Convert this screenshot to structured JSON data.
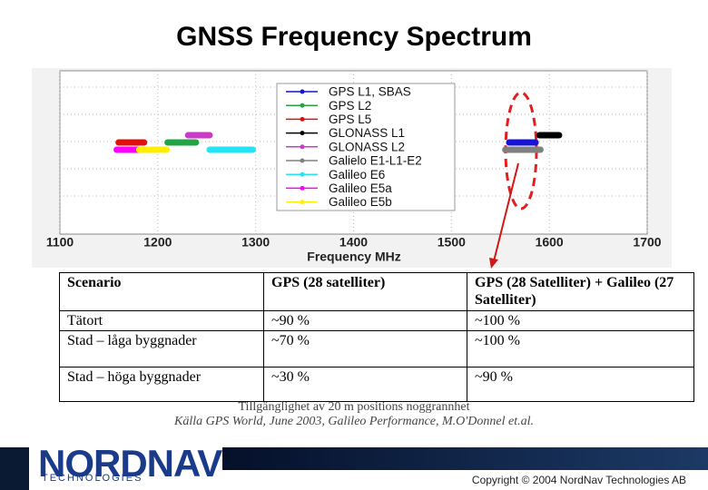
{
  "title": "GNSS Frequency Spectrum",
  "chart_data": {
    "type": "range",
    "xlabel": "Frequency MHz",
    "xlim": [
      1100,
      1700
    ],
    "xticks": [
      1100,
      1200,
      1300,
      1400,
      1500,
      1600,
      1700
    ],
    "grid": true,
    "series": [
      {
        "name": "GPS L1, SBAS",
        "color": "#1414d2",
        "values": [
          1559,
          1586
        ]
      },
      {
        "name": "GPS L2",
        "color": "#22a444",
        "values": [
          1210,
          1239
        ]
      },
      {
        "name": "GPS L5",
        "color": "#e01010",
        "values": [
          1160,
          1186
        ]
      },
      {
        "name": "GLONASS L1",
        "color": "#000000",
        "values": [
          1590,
          1610
        ]
      },
      {
        "name": "GLONASS L2",
        "color": "#c83cc8",
        "values": [
          1231,
          1253
        ]
      },
      {
        "name": "Galielo E1-L1-E2",
        "color": "#808080",
        "values": [
          1555,
          1591
        ]
      },
      {
        "name": "Galileo E6",
        "color": "#22e4f4",
        "values": [
          1253,
          1297
        ]
      },
      {
        "name": "Galileo E5a",
        "color": "#ff00ff",
        "values": [
          1158,
          1181
        ]
      },
      {
        "name": "Galileo E5b",
        "color": "#ffee00",
        "values": [
          1181,
          1209
        ]
      }
    ]
  },
  "table": {
    "header": [
      "Scenario",
      "GPS (28 satelliter)",
      "GPS (28 Satelliter) + Galileo (27 Satelliter)"
    ],
    "rows": [
      [
        "Tätort",
        "~90 %",
        "~100 %"
      ],
      [
        "Stad – låga byggnader",
        "~70 %",
        "~100 %"
      ],
      [
        "Stad – höga byggnader",
        "~30 %",
        "~90 %"
      ]
    ]
  },
  "caption": "Tillgänglighet av 20 m positions noggrannhet",
  "source": "Källa GPS World, June 2003, Galileo Performance, M.O'Donnel et.al.",
  "footer": {
    "logo": "NORDNAV",
    "logo_sub": "TECHNOLOGIES",
    "copyright": "Copyright © 2004 NordNav Technologies AB"
  }
}
